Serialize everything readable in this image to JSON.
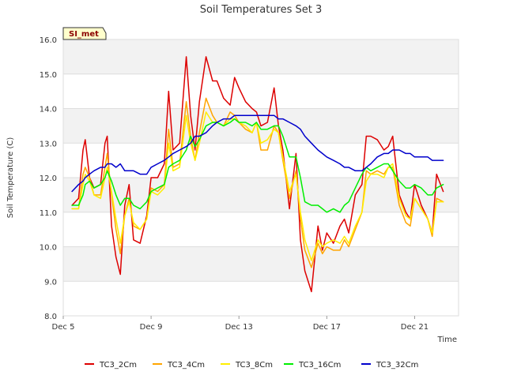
{
  "chart_data": {
    "type": "line",
    "title": "Soil Temperatures Set 3",
    "xlabel": "Time",
    "ylabel": "Soil Temperature (C)",
    "badge": "SI_met",
    "xlim": [
      0,
      18
    ],
    "ylim": [
      8.0,
      16.0
    ],
    "yticks": [
      "8.0",
      "9.0",
      "10.0",
      "11.0",
      "12.0",
      "13.0",
      "14.0",
      "15.0",
      "16.0"
    ],
    "xticks": [
      {
        "label": "Dec 5",
        "x": 0
      },
      {
        "label": "Dec 9",
        "x": 4
      },
      {
        "label": "Dec 13",
        "x": 8
      },
      {
        "label": "Dec 17",
        "x": 12
      },
      {
        "label": "Dec 21",
        "x": 16
      }
    ],
    "x": [
      0.4,
      0.7,
      0.9,
      1.0,
      1.2,
      1.4,
      1.7,
      1.9,
      2.0,
      2.2,
      2.4,
      2.6,
      2.8,
      3.0,
      3.2,
      3.5,
      3.8,
      4.0,
      4.3,
      4.6,
      4.8,
      5.0,
      5.3,
      5.6,
      5.8,
      6.0,
      6.2,
      6.5,
      6.8,
      7.0,
      7.3,
      7.6,
      7.8,
      8.0,
      8.3,
      8.6,
      8.8,
      9.0,
      9.3,
      9.6,
      9.8,
      10.0,
      10.3,
      10.6,
      10.8,
      11.0,
      11.3,
      11.6,
      11.8,
      12.0,
      12.3,
      12.6,
      12.8,
      13.0,
      13.3,
      13.6,
      13.8,
      14.0,
      14.3,
      14.6,
      14.8,
      15.0,
      15.3,
      15.6,
      15.8,
      16.0,
      16.3,
      16.6,
      16.8,
      17.0,
      17.3
    ],
    "series": [
      {
        "name": "TC3_2Cm",
        "color": "#dd0000",
        "values": [
          11.2,
          11.4,
          12.8,
          13.1,
          12.0,
          11.7,
          11.8,
          13.0,
          13.2,
          10.6,
          9.7,
          9.2,
          11.2,
          11.8,
          10.2,
          10.1,
          10.9,
          12.0,
          12.0,
          12.4,
          14.5,
          12.8,
          13.0,
          15.5,
          13.8,
          12.8,
          14.2,
          15.5,
          14.8,
          14.8,
          14.3,
          14.1,
          14.9,
          14.6,
          14.2,
          14.0,
          13.9,
          13.5,
          13.6,
          14.6,
          13.5,
          12.8,
          11.1,
          12.7,
          10.2,
          9.3,
          8.7,
          10.6,
          9.9,
          10.4,
          10.1,
          10.6,
          10.8,
          10.4,
          11.5,
          11.8,
          13.2,
          13.2,
          13.1,
          12.8,
          12.9,
          13.2,
          11.5,
          11.0,
          10.8,
          11.8,
          11.2,
          10.8,
          10.4,
          12.1,
          11.6
        ]
      },
      {
        "name": "TC3_4Cm",
        "color": "#ffa500",
        "values": [
          11.1,
          11.1,
          12.1,
          12.3,
          12.0,
          11.5,
          11.5,
          12.3,
          12.7,
          11.5,
          10.5,
          9.8,
          10.9,
          11.4,
          10.6,
          10.5,
          10.8,
          11.7,
          11.6,
          11.8,
          13.4,
          12.3,
          12.4,
          14.2,
          13.2,
          12.5,
          13.3,
          14.3,
          13.8,
          13.6,
          13.5,
          13.9,
          13.8,
          13.6,
          13.4,
          13.3,
          13.6,
          12.8,
          12.8,
          13.5,
          13.3,
          12.5,
          11.4,
          12.2,
          10.8,
          9.9,
          9.4,
          10.1,
          9.8,
          10.0,
          9.9,
          9.9,
          10.2,
          10.0,
          10.5,
          11.0,
          12.2,
          12.1,
          12.2,
          12.1,
          12.3,
          12.3,
          11.2,
          10.7,
          10.6,
          11.4,
          11.1,
          10.8,
          10.3,
          11.4,
          11.3
        ]
      },
      {
        "name": "TC3_8Cm",
        "color": "#ffee00",
        "values": [
          11.1,
          11.1,
          11.8,
          12.1,
          11.9,
          11.5,
          11.4,
          12.0,
          12.3,
          11.6,
          10.8,
          10.1,
          10.9,
          11.3,
          10.7,
          10.5,
          10.8,
          11.6,
          11.5,
          11.7,
          13.0,
          12.2,
          12.3,
          13.8,
          13.0,
          12.5,
          13.0,
          13.9,
          13.6,
          13.6,
          13.5,
          13.7,
          13.7,
          13.6,
          13.5,
          13.3,
          13.6,
          13.0,
          13.1,
          13.4,
          13.3,
          12.6,
          11.6,
          12.1,
          11.0,
          10.2,
          9.6,
          10.2,
          10.0,
          10.1,
          10.2,
          10.1,
          10.3,
          10.1,
          10.6,
          11.0,
          11.9,
          12.1,
          12.1,
          12.0,
          12.3,
          12.4,
          11.4,
          10.9,
          10.8,
          11.4,
          11.1,
          10.8,
          10.4,
          11.3,
          11.3
        ]
      },
      {
        "name": "TC3_16Cm",
        "color": "#00ee00",
        "values": [
          11.2,
          11.2,
          11.5,
          11.8,
          11.9,
          11.7,
          11.8,
          12.0,
          12.2,
          11.9,
          11.5,
          11.2,
          11.4,
          11.4,
          11.2,
          11.1,
          11.3,
          11.6,
          11.7,
          11.8,
          12.3,
          12.4,
          12.5,
          12.8,
          13.2,
          12.9,
          13.1,
          13.5,
          13.6,
          13.6,
          13.5,
          13.6,
          13.7,
          13.6,
          13.6,
          13.5,
          13.6,
          13.4,
          13.4,
          13.5,
          13.5,
          13.2,
          12.6,
          12.6,
          12.0,
          11.3,
          11.2,
          11.2,
          11.1,
          11.0,
          11.1,
          11.0,
          11.2,
          11.3,
          11.7,
          12.1,
          12.3,
          12.2,
          12.3,
          12.4,
          12.4,
          12.2,
          11.9,
          11.7,
          11.7,
          11.8,
          11.7,
          11.5,
          11.5,
          11.7,
          11.8
        ]
      },
      {
        "name": "TC3_32Cm",
        "color": "#0000cc",
        "values": [
          11.6,
          11.8,
          11.9,
          12.0,
          12.1,
          12.2,
          12.3,
          12.3,
          12.4,
          12.4,
          12.3,
          12.4,
          12.2,
          12.2,
          12.2,
          12.1,
          12.1,
          12.3,
          12.4,
          12.5,
          12.6,
          12.7,
          12.8,
          12.9,
          13.0,
          13.2,
          13.2,
          13.3,
          13.5,
          13.6,
          13.7,
          13.7,
          13.8,
          13.8,
          13.8,
          13.8,
          13.8,
          13.8,
          13.8,
          13.8,
          13.7,
          13.7,
          13.6,
          13.5,
          13.4,
          13.2,
          13.0,
          12.8,
          12.7,
          12.6,
          12.5,
          12.4,
          12.3,
          12.3,
          12.2,
          12.2,
          12.3,
          12.4,
          12.6,
          12.7,
          12.7,
          12.8,
          12.8,
          12.7,
          12.7,
          12.6,
          12.6,
          12.6,
          12.5,
          12.5,
          12.5
        ]
      }
    ]
  }
}
